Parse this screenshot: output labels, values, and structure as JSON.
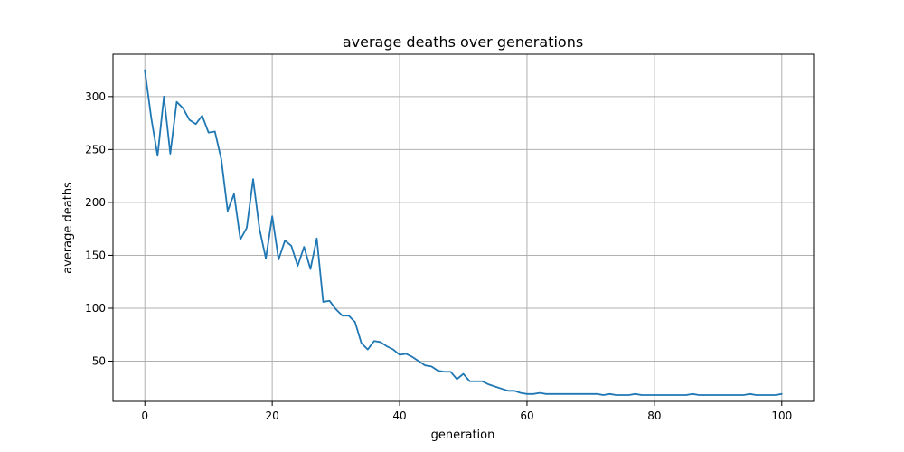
{
  "chart_data": {
    "type": "line",
    "title": "average deaths over generations",
    "xlabel": "generation",
    "ylabel": "average deaths",
    "xlim": [
      -5,
      105
    ],
    "ylim": [
      12,
      340
    ],
    "xticks": [
      0,
      20,
      40,
      60,
      80,
      100
    ],
    "yticks": [
      50,
      100,
      150,
      200,
      250,
      300
    ],
    "grid": true,
    "colors": {
      "series": "#1f77b4",
      "grid": "#b0b0b0",
      "axes": "#000000"
    },
    "series": [
      {
        "x": [
          0,
          1,
          2,
          3,
          4,
          5,
          6,
          7,
          8,
          9,
          10,
          11,
          12,
          13,
          14,
          15,
          16,
          17,
          18,
          19,
          20,
          21,
          22,
          23,
          24,
          25,
          26,
          27,
          28,
          29,
          30,
          31,
          32,
          33,
          34,
          35,
          36,
          37,
          38,
          39,
          40,
          41,
          42,
          43,
          44,
          45,
          46,
          47,
          48,
          49,
          50,
          51,
          52,
          53,
          54,
          55,
          56,
          57,
          58,
          59,
          60,
          61,
          62,
          63,
          64,
          65,
          66,
          67,
          68,
          69,
          70,
          71,
          72,
          73,
          74,
          75,
          76,
          77,
          78,
          79,
          80,
          81,
          82,
          83,
          84,
          85,
          86,
          87,
          88,
          89,
          90,
          91,
          92,
          93,
          94,
          95,
          96,
          97,
          98,
          99,
          100
        ],
        "y": [
          325,
          280,
          244,
          300,
          246,
          295,
          289,
          278,
          274,
          282,
          266,
          267,
          241,
          192,
          208,
          165,
          176,
          222,
          175,
          147,
          187,
          146,
          164,
          159,
          140,
          158,
          137,
          166,
          106,
          107,
          99,
          93,
          93,
          87,
          67,
          61,
          69,
          68,
          64,
          61,
          56,
          57,
          54,
          50,
          46,
          45,
          41,
          40,
          40,
          33,
          38,
          31,
          31,
          31,
          28,
          26,
          24,
          22,
          22,
          20,
          19,
          19,
          20,
          19,
          19,
          19,
          19,
          19,
          19,
          19,
          19,
          19,
          18,
          19,
          18,
          18,
          18,
          19,
          18,
          18,
          18,
          18,
          18,
          18,
          18,
          18,
          19,
          18,
          18,
          18,
          18,
          18,
          18,
          18,
          18,
          19,
          18,
          18,
          18,
          18,
          19
        ]
      }
    ]
  }
}
